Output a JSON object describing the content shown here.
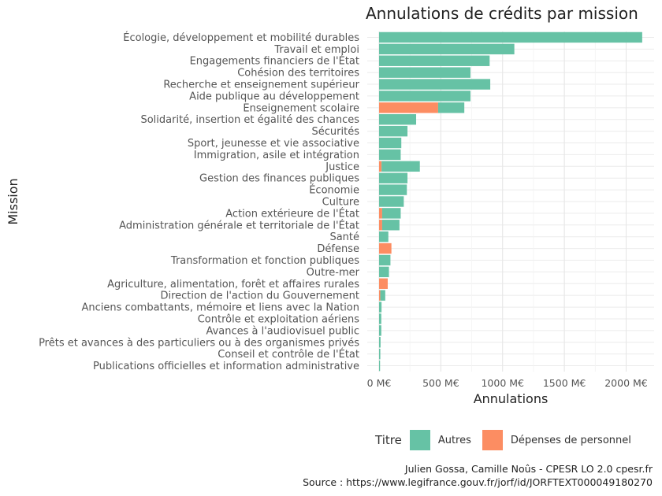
{
  "chart_data": {
    "type": "bar",
    "orientation": "horizontal",
    "stacked": true,
    "title": "Annulations de crédits par mission",
    "xlabel": "Annulations",
    "ylabel": "Mission",
    "xlim": [
      0,
      2200
    ],
    "grid": true,
    "x_ticks": [
      0,
      500,
      1000,
      1500,
      2000
    ],
    "x_tick_labels": [
      "0 M€",
      "500 M€",
      "1000 M€",
      "1500 M€",
      "2000 M€"
    ],
    "categories": [
      "Écologie, développement et mobilité durables",
      "Travail et emploi",
      "Engagements financiers de l'État",
      "Cohésion des territoires",
      "Recherche et enseignement supérieur",
      "Aide publique au développement",
      "Enseignement scolaire",
      "Solidarité, insertion et égalité des chances",
      "Sécurités",
      "Sport, jeunesse et vie associative",
      "Immigration, asile et intégration",
      "Justice",
      "Gestion des finances publiques",
      "Économie",
      "Culture",
      "Action extérieure de l'État",
      "Administration générale et territoriale de l'État",
      "Santé",
      "Défense",
      "Transformation et fonction publiques",
      "Outre-mer",
      "Agriculture, alimentation, forêt et affaires rurales",
      "Direction de l'action du Gouvernement",
      "Anciens combattants, mémoire et liens avec la Nation",
      "Contrôle et exploitation aériens",
      "Avances à l'audiovisuel public",
      "Prêts et avances à des particuliers ou à des organismes privés",
      "Conseil et contrôle de l'État",
      "Publications officielles et information administrative"
    ],
    "series": [
      {
        "name": "Dépenses de personnel",
        "color": "#fc8d62",
        "values": [
          0,
          0,
          0,
          0,
          0,
          0,
          478,
          0,
          0,
          0,
          0,
          20,
          0,
          0,
          0,
          25,
          25,
          0,
          100,
          0,
          0,
          70,
          10,
          0,
          0,
          0,
          0,
          0,
          0
        ]
      },
      {
        "name": "Autres",
        "color": "#66c2a5",
        "values": [
          2130,
          1095,
          895,
          740,
          900,
          740,
          212,
          300,
          230,
          180,
          175,
          310,
          230,
          225,
          200,
          150,
          140,
          75,
          0,
          92,
          80,
          0,
          40,
          20,
          18,
          18,
          12,
          10,
          8
        ]
      }
    ],
    "legend": {
      "title": "Titre",
      "position": "bottom",
      "entries": [
        "Autres",
        "Dépenses de personnel"
      ]
    }
  },
  "caption": {
    "line1": "Julien Gossa, Camille Noûs - CPESR LO 2.0 cpesr.fr",
    "line2": "Source : https://www.legifrance.gouv.fr/jorf/id/JORFTEXT000049180270"
  }
}
